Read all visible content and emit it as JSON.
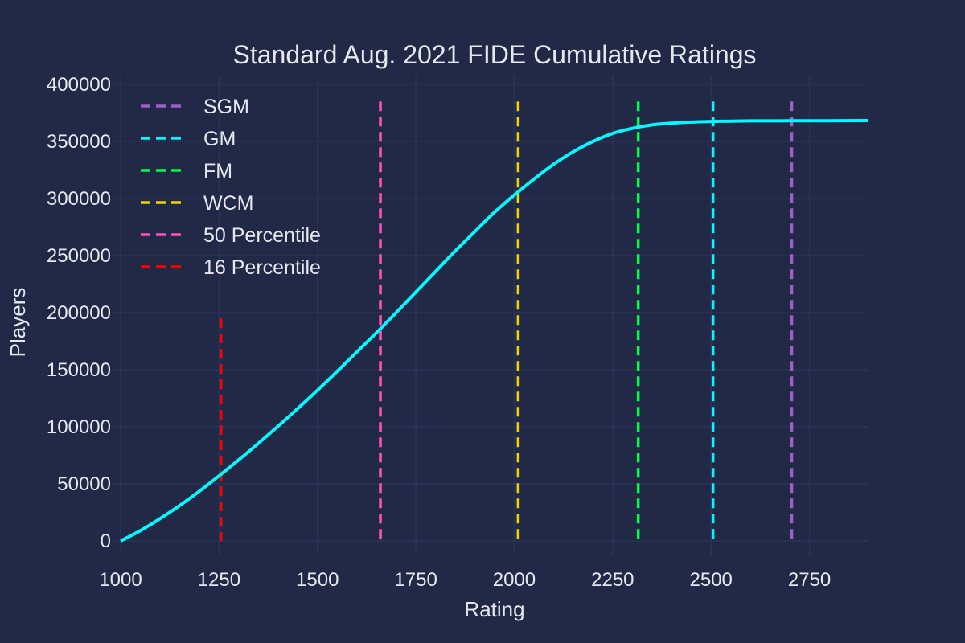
{
  "chart_data": {
    "type": "line",
    "title": "Standard Aug. 2021 FIDE Cumulative Ratings",
    "xlabel": "Rating",
    "ylabel": "Players",
    "xlim": [
      1000,
      2900
    ],
    "ylim": [
      0,
      400000
    ],
    "grid": true,
    "legend_position": "top-left",
    "background_color": "#212946",
    "grid_color": "#2A3459",
    "x_ticks": [
      1000,
      1250,
      1500,
      1750,
      2000,
      2250,
      2500,
      2750
    ],
    "y_ticks": [
      0,
      50000,
      100000,
      150000,
      200000,
      250000,
      300000,
      350000,
      400000
    ],
    "series": [
      {
        "color": "#08F7FE",
        "x": [
          1000,
          1050,
          1100,
          1150,
          1200,
          1250,
          1300,
          1350,
          1400,
          1450,
          1500,
          1550,
          1600,
          1650,
          1700,
          1750,
          1800,
          1850,
          1900,
          1950,
          2000,
          2050,
          2100,
          2150,
          2200,
          2250,
          2300,
          2350,
          2400,
          2450,
          2500,
          2550,
          2600,
          2700,
          2800,
          2900
        ],
        "y": [
          0,
          9000,
          19500,
          31000,
          43500,
          57000,
          71000,
          85500,
          100500,
          116000,
          132000,
          148500,
          165500,
          182500,
          200000,
          218000,
          236000,
          254000,
          271000,
          288000,
          303000,
          317000,
          330000,
          341000,
          350000,
          357000,
          361500,
          364500,
          366000,
          367000,
          367500,
          367800,
          368000,
          368100,
          368200,
          368300
        ]
      }
    ],
    "vlines": [
      {
        "name": "SGM",
        "x": 2705,
        "y_top": 385000,
        "color": "#9F5FC8"
      },
      {
        "name": "GM",
        "x": 2505,
        "y_top": 385000,
        "color": "#08F7FE"
      },
      {
        "name": "FM",
        "x": 2315,
        "y_top": 385000,
        "color": "#00FF41"
      },
      {
        "name": "WCM",
        "x": 2010,
        "y_top": 385000,
        "color": "#F5D300"
      },
      {
        "name": "50 Percentile",
        "x": 1660,
        "y_top": 385000,
        "color": "#FE53BB"
      },
      {
        "name": "16 Percentile",
        "x": 1255,
        "y_top": 195000,
        "color": "#FF0000"
      }
    ]
  }
}
